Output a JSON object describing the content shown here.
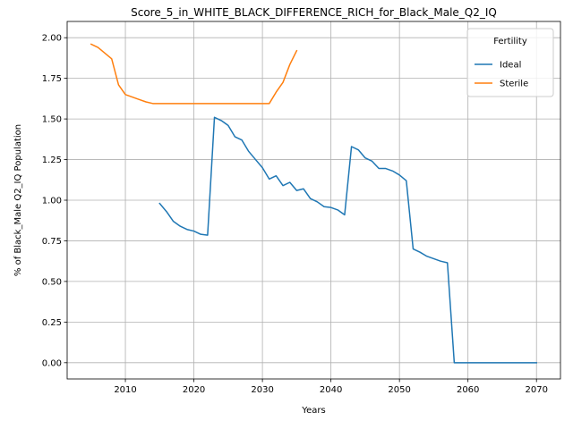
{
  "chart_data": {
    "type": "line",
    "title": "Score_5_in_WHITE_BLACK_DIFFERENCE_RICH_for_Black_Male_Q2_IQ",
    "xlabel": "Years",
    "ylabel": "% of Black_Male Q2_IQ Population",
    "xlim": [
      2001.5,
      2073.5
    ],
    "ylim": [
      -0.1,
      2.1
    ],
    "xticks": [
      2010,
      2020,
      2030,
      2040,
      2050,
      2060,
      2070
    ],
    "xtick_labels": [
      "2010",
      "2020",
      "2030",
      "2040",
      "2050",
      "2060",
      "2070"
    ],
    "yticks": [
      0.0,
      0.25,
      0.5,
      0.75,
      1.0,
      1.25,
      1.5,
      1.75,
      2.0
    ],
    "ytick_labels": [
      "0.00",
      "0.25",
      "0.50",
      "0.75",
      "1.00",
      "1.25",
      "1.50",
      "1.75",
      "2.00"
    ],
    "grid": true,
    "legend": {
      "title": "Fertility",
      "position": "top-right"
    },
    "series": [
      {
        "name": "Ideal",
        "color": "#1f77b4",
        "x": [
          2015,
          2016,
          2017,
          2018,
          2019,
          2020,
          2021,
          2022,
          2023,
          2024,
          2025,
          2026,
          2027,
          2028,
          2029,
          2030,
          2031,
          2032,
          2033,
          2034,
          2035,
          2036,
          2037,
          2038,
          2039,
          2040,
          2041,
          2042,
          2043,
          2044,
          2045,
          2046,
          2047,
          2048,
          2049,
          2050,
          2051,
          2052,
          2053,
          2054,
          2055,
          2056,
          2057,
          2058,
          2059,
          2060,
          2061,
          2062,
          2063,
          2064,
          2065,
          2066,
          2067,
          2068,
          2069,
          2070
        ],
        "y": [
          0.98,
          0.93,
          0.87,
          0.84,
          0.82,
          0.81,
          0.79,
          0.785,
          1.51,
          1.49,
          1.46,
          1.39,
          1.37,
          1.3,
          1.25,
          1.2,
          1.13,
          1.15,
          1.09,
          1.11,
          1.06,
          1.07,
          1.01,
          0.99,
          0.96,
          0.955,
          0.94,
          0.91,
          1.33,
          1.31,
          1.26,
          1.24,
          1.195,
          1.195,
          1.18,
          1.155,
          1.12,
          0.7,
          0.68,
          0.655,
          0.64,
          0.625,
          0.615,
          0.0,
          0.0,
          0.0,
          0.0,
          0.0,
          0.0,
          0.0,
          0.0,
          0.0,
          0.0,
          0.0,
          0.0,
          0.0
        ]
      },
      {
        "name": "Sterile",
        "color": "#ff7f0e",
        "x": [
          2005,
          2006,
          2007,
          2008,
          2009,
          2010,
          2011,
          2012,
          2013,
          2014,
          2015,
          2016,
          2017,
          2018,
          2019,
          2020,
          2021,
          2022,
          2023,
          2024,
          2025,
          2026,
          2027,
          2028,
          2029,
          2030,
          2031,
          2032,
          2033,
          2034,
          2035
        ],
        "y": [
          1.96,
          1.94,
          1.905,
          1.87,
          1.71,
          1.65,
          1.635,
          1.62,
          1.605,
          1.595,
          1.595,
          1.595,
          1.595,
          1.595,
          1.595,
          1.595,
          1.595,
          1.595,
          1.595,
          1.595,
          1.595,
          1.595,
          1.595,
          1.595,
          1.595,
          1.595,
          1.595,
          1.665,
          1.725,
          1.835,
          1.92
        ]
      }
    ]
  }
}
